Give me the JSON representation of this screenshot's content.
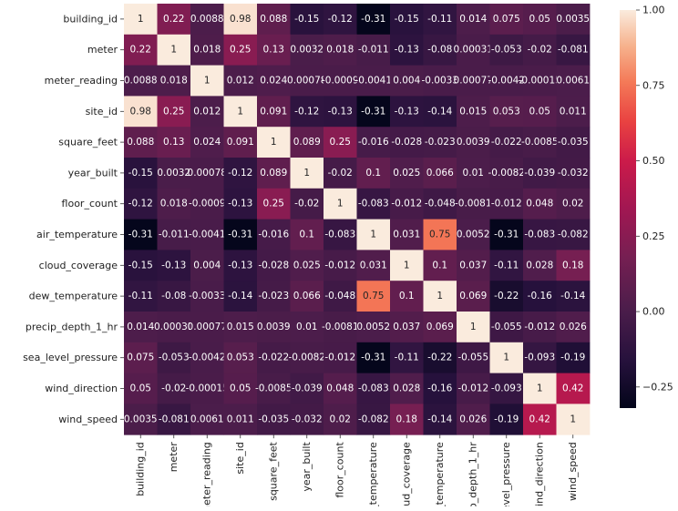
{
  "chart_data": {
    "type": "heatmap",
    "title": "",
    "xlabel": "",
    "ylabel": "",
    "labels": [
      "building_id",
      "meter",
      "meter_reading",
      "site_id",
      "square_feet",
      "year_built",
      "floor_count",
      "air_temperature",
      "cloud_coverage",
      "dew_temperature",
      "precip_depth_1_hr",
      "sea_level_pressure",
      "wind_direction",
      "wind_speed"
    ],
    "value_range": [
      -0.32,
      1.0
    ],
    "colorbar_ticks": [
      "1.00",
      "0.75",
      "0.50",
      "0.25",
      "0.00",
      "−0.25"
    ],
    "colorbar_tick_values": [
      1.0,
      0.75,
      0.5,
      0.25,
      0.0,
      -0.25
    ],
    "colormap": "rocket",
    "matrix": [
      [
        "1",
        "0.22",
        "0.0088",
        "0.98",
        "0.088",
        "-0.15",
        "-0.12",
        "-0.31",
        "-0.15",
        "-0.11",
        "0.014",
        "0.075",
        "0.05",
        "0.0035"
      ],
      [
        "0.22",
        "1",
        "0.018",
        "0.25",
        "0.13",
        "0.0032",
        "0.018",
        "-0.011",
        "-0.13",
        "-0.08",
        "0.00031",
        "-0.053",
        "-0.02",
        "-0.081"
      ],
      [
        "0.0088",
        "0.018",
        "1",
        "0.012",
        "0.024",
        "0.00078",
        "-0.0009",
        "-0.0041",
        "0.004",
        "-0.0033",
        "0.00077",
        "-0.0042",
        "-0.00015",
        "0.0061"
      ],
      [
        "0.98",
        "0.25",
        "0.012",
        "1",
        "0.091",
        "-0.12",
        "-0.13",
        "-0.31",
        "-0.13",
        "-0.14",
        "0.015",
        "0.053",
        "0.05",
        "0.011"
      ],
      [
        "0.088",
        "0.13",
        "0.024",
        "0.091",
        "1",
        "0.089",
        "0.25",
        "-0.016",
        "-0.028",
        "-0.023",
        "0.0039",
        "-0.022",
        "-0.0085",
        "-0.035"
      ],
      [
        "-0.15",
        "0.0032",
        "0.00078",
        "-0.12",
        "0.089",
        "1",
        "-0.02",
        "0.1",
        "0.025",
        "0.066",
        "0.01",
        "-0.0082",
        "-0.039",
        "-0.032"
      ],
      [
        "-0.12",
        "0.018",
        "-0.0009",
        "-0.13",
        "0.25",
        "-0.02",
        "1",
        "-0.083",
        "-0.012",
        "-0.048",
        "-0.0081",
        "-0.012",
        "0.048",
        "0.02"
      ],
      [
        "-0.31",
        "-0.011",
        "-0.0041",
        "-0.31",
        "-0.016",
        "0.1",
        "-0.083",
        "1",
        "0.031",
        "0.75",
        "0.0052",
        "-0.31",
        "-0.083",
        "-0.082"
      ],
      [
        "-0.15",
        "-0.13",
        "0.004",
        "-0.13",
        "-0.028",
        "0.025",
        "-0.012",
        "0.031",
        "1",
        "0.1",
        "0.037",
        "-0.11",
        "0.028",
        "0.18"
      ],
      [
        "-0.11",
        "-0.08",
        "-0.0033",
        "-0.14",
        "-0.023",
        "0.066",
        "-0.048",
        "0.75",
        "0.1",
        "1",
        "0.069",
        "-0.22",
        "-0.16",
        "-0.14"
      ],
      [
        "0.014",
        "0.00031",
        "0.00077",
        "0.015",
        "0.0039",
        "0.01",
        "-0.0081",
        "0.0052",
        "0.037",
        "0.069",
        "1",
        "-0.055",
        "-0.012",
        "0.026"
      ],
      [
        "0.075",
        "-0.053",
        "-0.0042",
        "0.053",
        "-0.022",
        "-0.0082",
        "-0.012",
        "-0.31",
        "-0.11",
        "-0.22",
        "-0.055",
        "1",
        "-0.093",
        "-0.19"
      ],
      [
        "0.05",
        "-0.02",
        "-0.00015",
        "0.05",
        "-0.0085",
        "-0.039",
        "0.048",
        "-0.083",
        "0.028",
        "-0.16",
        "-0.012",
        "-0.093",
        "1",
        "0.42"
      ],
      [
        "0.0035",
        "-0.081",
        "0.0061",
        "0.011",
        "-0.035",
        "-0.032",
        "0.02",
        "-0.082",
        "0.18",
        "-0.14",
        "0.026",
        "-0.19",
        "0.42",
        "1"
      ]
    ]
  }
}
